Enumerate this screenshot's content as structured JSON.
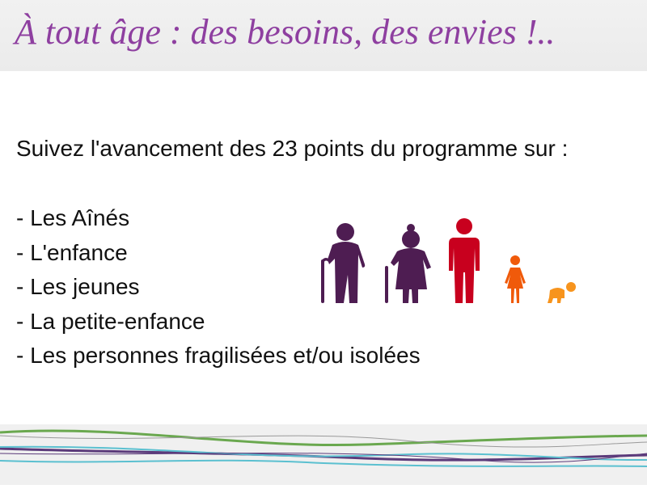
{
  "header": {
    "title": "À tout âge : des besoins, des envies !.."
  },
  "main": {
    "intro": "Suivez l'avancement des 23 points du programme sur :",
    "items": [
      {
        "label": "- Les Aînés"
      },
      {
        "label": "- L'enfance"
      },
      {
        "label": "- Les jeunes"
      },
      {
        "label": "- La petite-enfance"
      },
      {
        "label": "- Les personnes fragilisées et/ou isolées"
      }
    ]
  },
  "figures": [
    {
      "icon": "elderly-man-icon",
      "color": "#4e1d52"
    },
    {
      "icon": "elderly-woman-icon",
      "color": "#4e1d52"
    },
    {
      "icon": "adult-icon",
      "color": "#c8001e"
    },
    {
      "icon": "child-icon",
      "color": "#f05a0a"
    },
    {
      "icon": "baby-icon",
      "color": "#f7941d"
    }
  ],
  "colors": {
    "title": "#8e3fa0",
    "line_green": "#6aa84f",
    "line_purple": "#5b3a7a",
    "line_blue": "#5bc0d0"
  }
}
